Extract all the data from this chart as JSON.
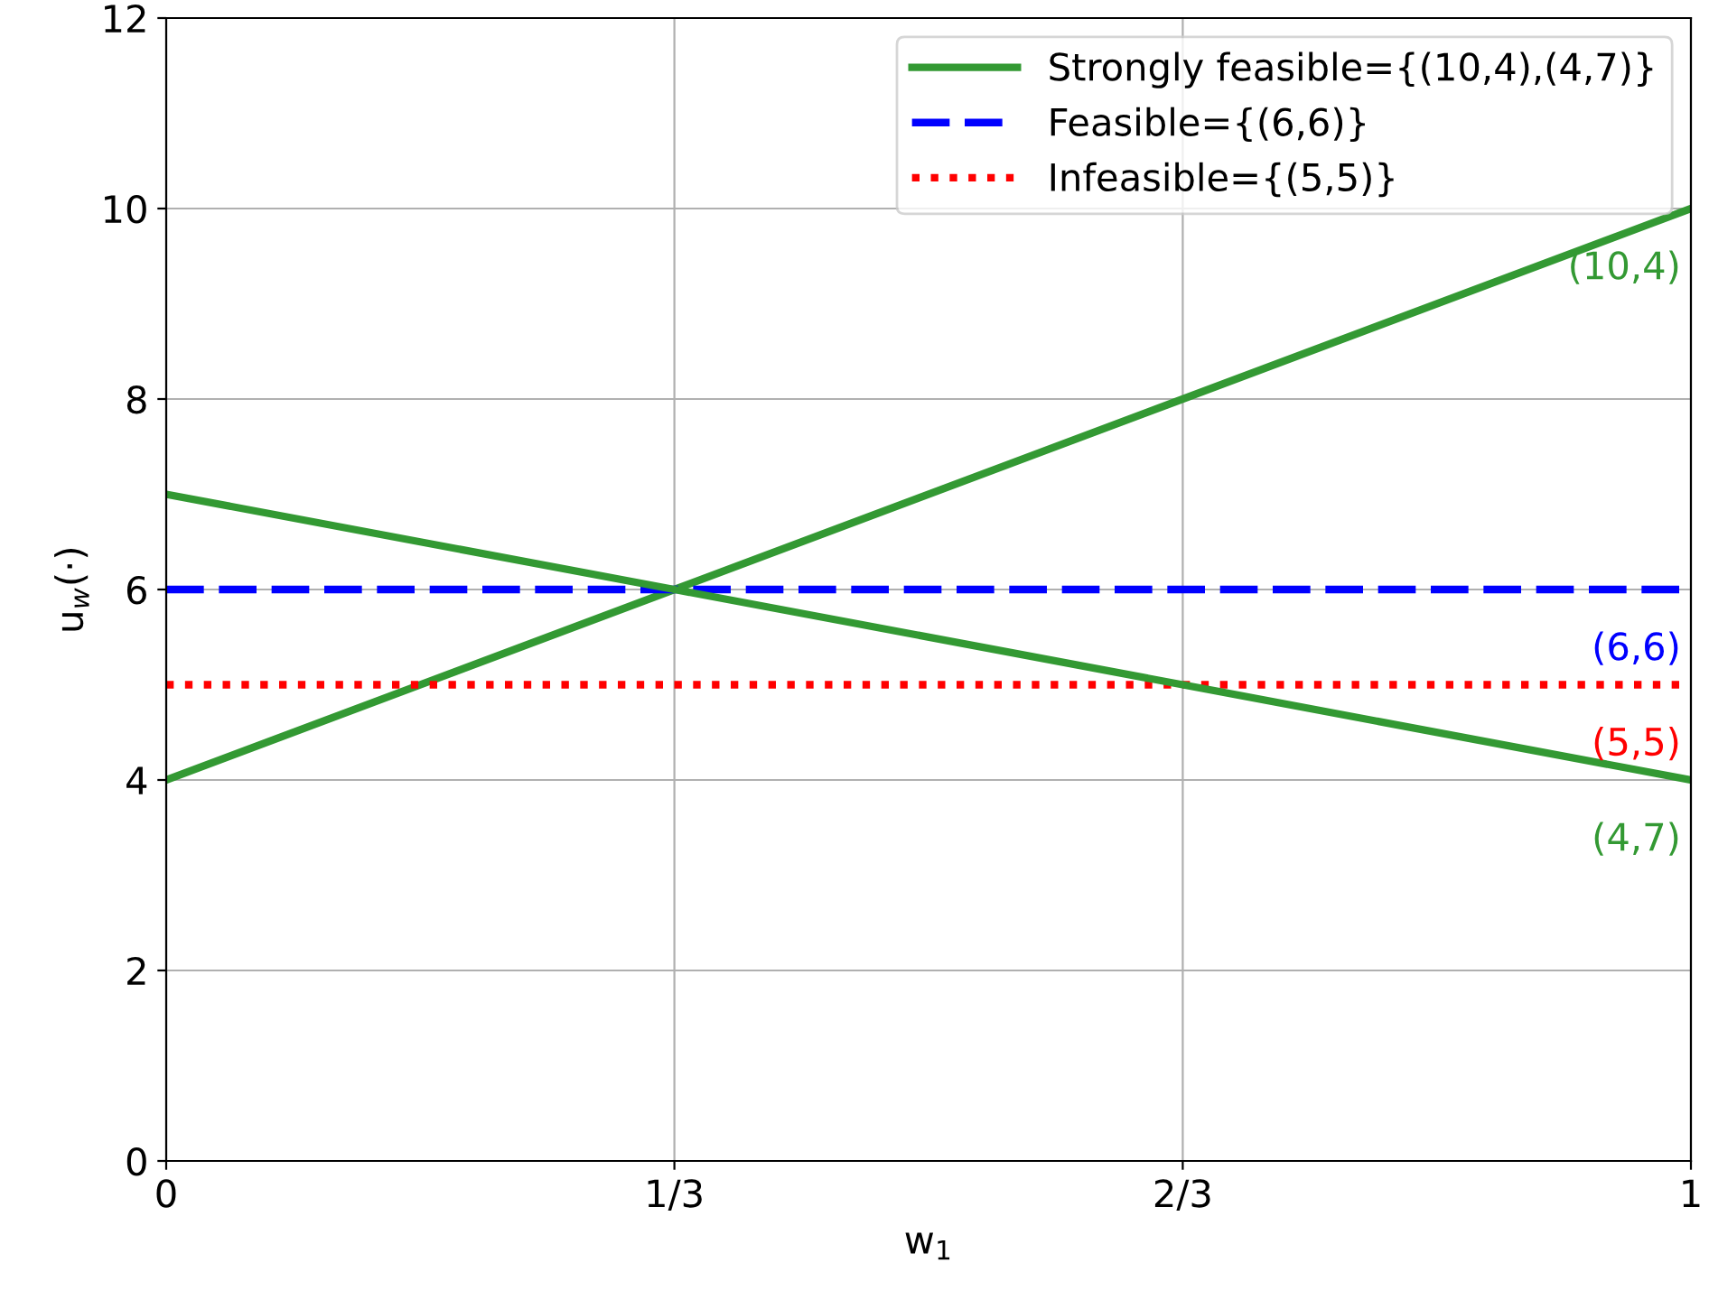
{
  "chart_data": {
    "type": "line",
    "xlabel": "w$_{1}$",
    "ylabel": "u$_{w}$(·)",
    "xlim": [
      0,
      1
    ],
    "ylim": [
      0,
      12
    ],
    "xticks": [
      0,
      {
        "value": 0.3333,
        "label": "1/3"
      },
      {
        "value": 0.6667,
        "label": "2/3"
      },
      1
    ],
    "yticks": [
      0,
      2,
      4,
      6,
      8,
      10,
      12
    ],
    "series": [
      {
        "name": "Strongly feasible={(10,4),(4,7)}",
        "color": "#339933",
        "x": [
          0,
          0.3333,
          0.6667,
          1
        ],
        "values": [
          4,
          6,
          8,
          10
        ],
        "line_style": "solid"
      },
      {
        "name": "Feasible={(6,6)}",
        "color": "#0000ff",
        "x": [
          0,
          0.3333,
          0.6667,
          1
        ],
        "values": [
          6,
          6,
          6,
          6
        ],
        "line_style": "dashed"
      },
      {
        "name": "Infeasible={(5,5)}",
        "color": "#ff0000",
        "x": [
          0,
          0.3333,
          0.6667,
          1
        ],
        "values": [
          5,
          5,
          5,
          5
        ],
        "line_style": "dotted"
      },
      {
        "color": "#339933",
        "x": [
          0,
          0.3333,
          0.6667,
          1
        ],
        "values": [
          7,
          6,
          5,
          4
        ],
        "line_style": "solid"
      }
    ],
    "annotations": [
      "(10,4)",
      "(6,6)",
      "(5,5)",
      "(4,7)"
    ],
    "grid": true,
    "legend": "top right",
    "marker": "none"
  }
}
